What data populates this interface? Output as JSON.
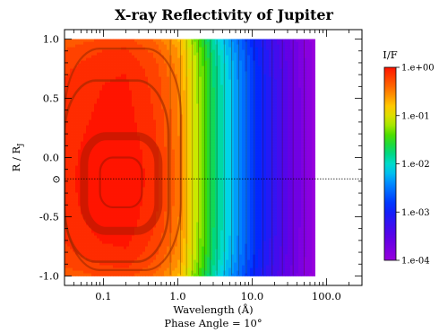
{
  "chart_data": {
    "type": "heatmap",
    "title": "X-ray Reflectivity of Jupiter",
    "xlabel": "Wavelength (Å)",
    "subtitle": "Phase Angle = 10°",
    "ylabel": "R / R",
    "ylabel_subscript": "J",
    "x_scale": "log",
    "xlim": [
      0.03,
      300
    ],
    "ylim": [
      -1.08,
      1.08
    ],
    "x_ticks": [
      {
        "value": 0.1,
        "label": "0.1"
      },
      {
        "value": 1.0,
        "label": "1.0"
      },
      {
        "value": 10.0,
        "label": "10.0"
      },
      {
        "value": 100.0,
        "label": "100.0"
      }
    ],
    "y_ticks": [
      {
        "value": 1.0,
        "label": "1.0"
      },
      {
        "value": 0.5,
        "label": "0.5"
      },
      {
        "value": 0.0,
        "label": "0.0"
      },
      {
        "value": -0.5,
        "label": "-0.5"
      },
      {
        "value": -1.0,
        "label": "-1.0"
      }
    ],
    "sun_marker_y": -0.18,
    "sun_marker_symbol": "⊙",
    "data_wavelength_max": 70,
    "data_coverage_y": [
      -1.0,
      1.0
    ],
    "colorbar": {
      "title": "I/F",
      "scale": "log",
      "range": [
        0.0001,
        1.0
      ],
      "ticks": [
        {
          "value": 1.0,
          "label": "1.e+00"
        },
        {
          "value": 0.1,
          "label": "1.e-01"
        },
        {
          "value": 0.01,
          "label": "1.e-02"
        },
        {
          "value": 0.001,
          "label": "1.e-03"
        },
        {
          "value": 0.0001,
          "label": "1.e-04"
        }
      ]
    },
    "reflectivity_profile_vs_wavelength": {
      "wavelength": [
        0.03,
        0.1,
        0.2,
        0.5,
        1.0,
        1.5,
        2.0,
        3.0,
        5.0,
        7.0,
        10.0,
        15.0,
        20.0,
        30.0,
        50.0,
        70.0
      ],
      "log10_IF": [
        -0.15,
        -0.05,
        -0.03,
        -0.2,
        -0.5,
        -0.95,
        -1.25,
        -1.7,
        -2.15,
        -2.45,
        -2.75,
        -3.05,
        -3.25,
        -3.5,
        -3.8,
        -4.0
      ]
    },
    "peak_region": {
      "wavelength": [
        0.07,
        0.5
      ],
      "y_center": -0.18
    },
    "contour_levels_log10": [
      -0.1,
      -0.2,
      -0.3,
      -0.4,
      -0.6,
      -0.8,
      -1.0,
      -1.2,
      -1.4,
      -1.6,
      -1.8,
      -2.0,
      -2.2,
      -2.4,
      -2.6,
      -2.8,
      -3.0,
      -3.2,
      -3.4,
      -3.6,
      -3.8
    ]
  }
}
